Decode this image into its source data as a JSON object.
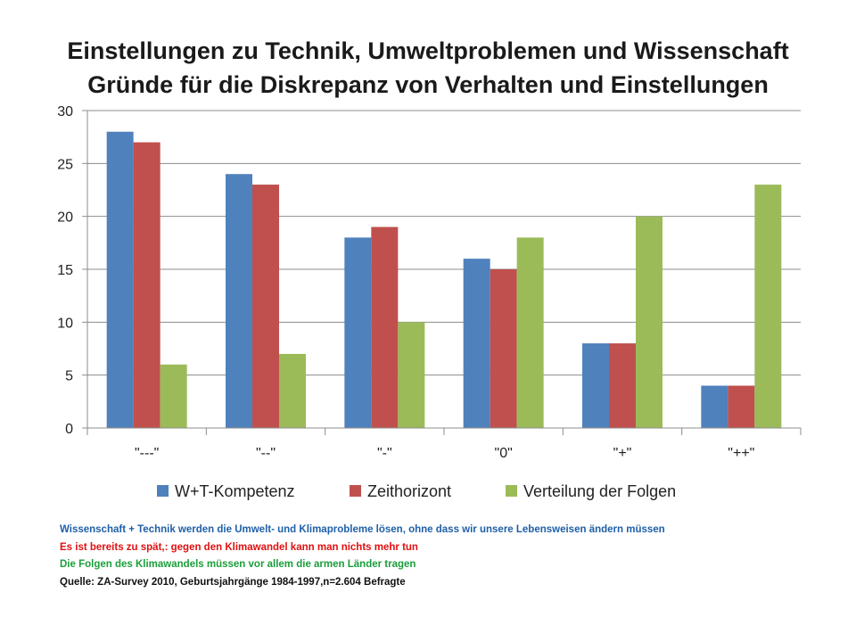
{
  "chart_data": {
    "type": "bar",
    "title": "Einstellungen zu Technik, Umweltproblemen und Wissenschaft",
    "subtitle": "Gründe für die Diskrepanz von Verhalten und Einstellungen",
    "categories": [
      "\"---\"",
      "\"--\"",
      "\"-\"",
      "\"0\"",
      "\"+\"",
      "\"++\""
    ],
    "series": [
      {
        "name": "W+T-Kompetenz",
        "color": "#4f81bd",
        "values": [
          28,
          24,
          18,
          16,
          8,
          4
        ]
      },
      {
        "name": "Zeithorizont",
        "color": "#c0504d",
        "values": [
          27,
          23,
          19,
          15,
          8,
          4
        ]
      },
      {
        "name": "Verteilung der Folgen",
        "color": "#9bbb59",
        "values": [
          6,
          7,
          10,
          18,
          20,
          23
        ]
      }
    ],
    "ylim": [
      0,
      30
    ],
    "yticks": [
      0,
      5,
      10,
      15,
      20,
      25,
      30
    ],
    "grid": true,
    "legend": "bottom"
  },
  "notes": [
    {
      "text": "Wissenschaft + Technik werden die Umwelt- und Klimaprobleme lösen, ohne dass wir unsere Lebensweisen ändern müssen",
      "color": "#1f5fa8"
    },
    {
      "text": "Es ist bereits zu spät,: gegen den Klimawandel kann man nichts mehr tun",
      "color": "#e01010"
    },
    {
      "text": "Die Folgen des Klimawandels müssen vor allem die armen Länder tragen",
      "color": "#1a9e3a"
    },
    {
      "text": "Quelle: ZA-Survey 2010, Geburtsjahrgänge 1984-1997,n=2.604 Befragte",
      "color": "#111111"
    }
  ]
}
